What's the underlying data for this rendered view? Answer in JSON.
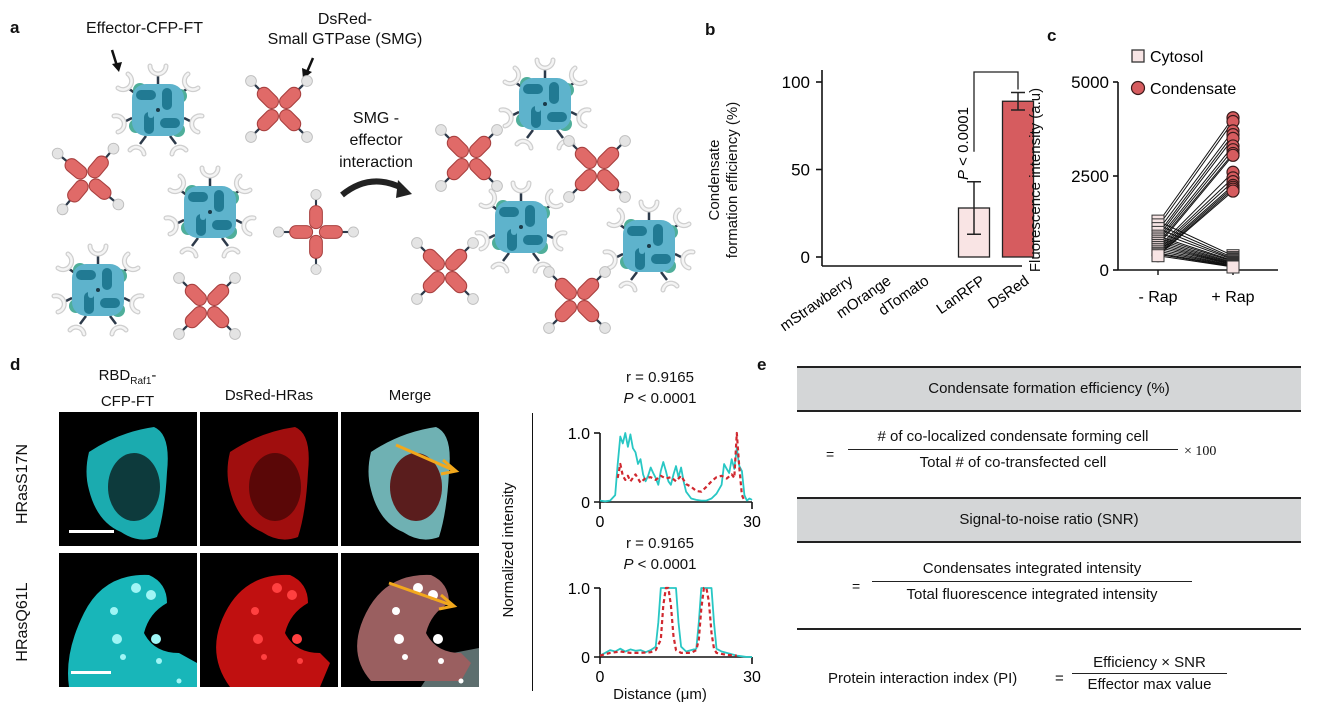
{
  "panels": {
    "a": {
      "label": "a",
      "effector_label": "Effector-CFP-FT",
      "smg_label_line1": "DsRed-",
      "smg_label_line2": "Small GTPase (SMG)",
      "interaction_line1": "SMG -",
      "interaction_line2": "effector",
      "interaction_line3": "interaction",
      "colors": {
        "effector_dark": "#217a93",
        "effector_light": "#5eb3cc",
        "effector_accent": "#4fae9a",
        "smg": "#e06a68",
        "smg_edge": "#a8403f",
        "binder": "#e4e4e4"
      }
    },
    "b": {
      "label": "b"
    },
    "c": {
      "label": "c"
    },
    "d": {
      "label": "d",
      "col_headers": {
        "c1_main": "RBD",
        "c1_sub": "Raf1",
        "c1_dash": "-",
        "c1_line2": "CFP-FT",
        "c2": "DsRed-HRas",
        "c3": "Merge"
      },
      "row_labels": [
        "HRasS17N",
        "HRasQ61L"
      ],
      "colors": {
        "cyan": "#19c6c9",
        "red": "#d81414",
        "arrow": "#f2a81d"
      }
    },
    "e": {
      "label": "e",
      "header1": "Condensate formation efficiency (%)",
      "eq1_equals": "=",
      "eq1_num": "# of co-localized condensate forming cell",
      "eq1_den": "Total # of co-transfected cell",
      "eq1_mult": "× 100",
      "header2": "Signal-to-noise ratio (SNR)",
      "eq2_equals": "=",
      "eq2_num": "Condensates integrated intensity",
      "eq2_den": "Total fluorescence integrated intensity",
      "eq3_lhs": "Protein interaction index (PI)",
      "eq3_equals": "=",
      "eq3_num": "Efficiency × SNR",
      "eq3_den": "Effector max value"
    }
  },
  "chart_data": [
    {
      "id": "b",
      "type": "bar",
      "title": "",
      "xlabel": "",
      "ylabel_line1": "Condensate",
      "ylabel_line2": "formation efficiency (%)",
      "categories": [
        "mStrawberry",
        "mOrange",
        "dTomato",
        "LanRFP",
        "DsRed"
      ],
      "values": [
        0,
        0,
        0,
        28,
        89
      ],
      "errors": [
        0,
        0,
        0,
        15,
        5
      ],
      "bar_colors": [
        "#f9e4e4",
        "#f9e4e4",
        "#f9e4e4",
        "#f9e4e4",
        "#d65c5f"
      ],
      "ylim": [
        0,
        100
      ],
      "yticks": [
        0,
        50,
        100
      ],
      "annotation": {
        "text_italic": "P",
        "text_rest": " < 0.0001",
        "between": [
          "LanRFP",
          "DsRed"
        ]
      },
      "grid": false
    },
    {
      "id": "c",
      "type": "scatter",
      "ylabel": "Fluorescence intensity (a.u)",
      "categories": [
        "- Rap",
        "+ Rap"
      ],
      "ylim": [
        0,
        5000
      ],
      "yticks": [
        0,
        2500,
        5000
      ],
      "legend": [
        {
          "name": "Cytosol",
          "marker": "square",
          "color": "#f7e4e4"
        },
        {
          "name": "Condensate",
          "marker": "circle",
          "color": "#d65c5f"
        }
      ],
      "legend_position": "top-right",
      "paired_series": {
        "condensate": {
          "minus_rap": [
            1250,
            1150,
            1050,
            950,
            880,
            820,
            760,
            700,
            650,
            600,
            560,
            520,
            480,
            440,
            400,
            380
          ],
          "plus_rap": [
            4050,
            3950,
            3700,
            3600,
            3500,
            3300,
            3200,
            3100,
            3050,
            2600,
            2450,
            2350,
            2250,
            2200,
            2150,
            2100
          ]
        },
        "cytosol": {
          "minus_rap": [
            1300,
            1200,
            1100,
            1000,
            900,
            850,
            800,
            750,
            700,
            650,
            600,
            550,
            500,
            450,
            420,
            380
          ],
          "plus_rap": [
            380,
            330,
            300,
            280,
            250,
            230,
            200,
            180,
            160,
            150,
            140,
            120,
            110,
            100,
            90,
            80
          ]
        }
      }
    },
    {
      "id": "d-line-top",
      "type": "line",
      "annotation_r": "r = 0.9165",
      "annotation_p_italic": "P",
      "annotation_p_rest": " < 0.0001",
      "xlim": [
        0,
        30
      ],
      "ylim": [
        0,
        1.0
      ],
      "xticks": [
        0,
        30
      ],
      "yticks": [
        "0",
        "1.0"
      ],
      "series": [
        {
          "name": "cyan",
          "color": "#28c7c4",
          "dash": false,
          "x": [
            0,
            1,
            2,
            3,
            3.5,
            4,
            4.5,
            5,
            5.5,
            6,
            6.5,
            7,
            7.5,
            8,
            8.5,
            9,
            9.5,
            10,
            10.5,
            11,
            11.5,
            12,
            12.5,
            13,
            13.5,
            14,
            14.5,
            15,
            15.5,
            16,
            16.5,
            17,
            18,
            19,
            20,
            21,
            22,
            23,
            24,
            24.5,
            25,
            25.5,
            26,
            26.5,
            27,
            27.5,
            28,
            28.5,
            29,
            29.5,
            30
          ],
          "y": [
            0.02,
            0.01,
            0.02,
            0.1,
            0.55,
            0.95,
            0.85,
            1.0,
            0.8,
            0.98,
            0.78,
            0.72,
            0.55,
            0.62,
            0.4,
            0.3,
            0.38,
            0.5,
            0.42,
            0.35,
            0.25,
            0.45,
            0.58,
            0.45,
            0.3,
            0.25,
            0.4,
            0.52,
            0.36,
            0.5,
            0.3,
            0.15,
            0.05,
            0.03,
            0.02,
            0.02,
            0.05,
            0.12,
            0.25,
            0.55,
            0.48,
            0.42,
            0.62,
            0.48,
            0.78,
            0.52,
            0.45,
            0.1,
            0.02,
            0.05,
            0.03
          ]
        },
        {
          "name": "red",
          "color": "#d0282f",
          "dash": true,
          "x": [
            3.5,
            4,
            4.5,
            5,
            5.5,
            6,
            7,
            8,
            9,
            10,
            11,
            12,
            13,
            14,
            15,
            16,
            17,
            18,
            19,
            20,
            21,
            22,
            23,
            24,
            25,
            26,
            26.5,
            27,
            27.5,
            28,
            28.5
          ],
          "y": [
            0.35,
            0.55,
            0.38,
            0.32,
            0.38,
            0.3,
            0.4,
            0.28,
            0.35,
            0.36,
            0.32,
            0.38,
            0.34,
            0.36,
            0.3,
            0.38,
            0.26,
            0.22,
            0.16,
            0.15,
            0.22,
            0.3,
            0.36,
            0.38,
            0.34,
            0.4,
            0.35,
            1.0,
            0.5,
            0.1,
            0.02
          ]
        }
      ]
    },
    {
      "id": "d-line-bottom",
      "type": "line",
      "annotation_r": "r = 0.9165",
      "annotation_p_italic": "P",
      "annotation_p_rest": " < 0.0001",
      "xlabel": "Distance (μm)",
      "ylabel": "Normalized intensity",
      "xlim": [
        0,
        30
      ],
      "ylim": [
        0,
        1.0
      ],
      "xticks": [
        0,
        30
      ],
      "yticks": [
        "0",
        "1.0"
      ],
      "series": [
        {
          "name": "cyan",
          "color": "#28c7c4",
          "dash": false,
          "x": [
            0,
            1,
            2,
            3,
            4,
            5,
            6,
            7,
            8,
            9,
            10,
            11,
            11.5,
            12,
            12.5,
            13,
            14,
            15,
            15.5,
            16,
            17,
            18,
            19,
            19.5,
            20,
            21,
            22,
            22.5,
            23,
            24,
            25,
            26,
            27,
            28,
            29,
            30
          ],
          "y": [
            0.02,
            0.06,
            0.1,
            0.08,
            0.12,
            0.08,
            0.11,
            0.09,
            0.1,
            0.07,
            0.1,
            0.15,
            0.5,
            1.0,
            1.0,
            1.0,
            1.0,
            1.0,
            0.5,
            0.15,
            0.08,
            0.1,
            0.12,
            0.5,
            1.0,
            1.0,
            1.0,
            0.5,
            0.12,
            0.08,
            0.06,
            0.04,
            0.02,
            0.01,
            0.0,
            0.0
          ]
        },
        {
          "name": "red",
          "color": "#d0282f",
          "dash": true,
          "x": [
            0,
            2,
            4,
            6,
            8,
            10,
            11,
            12,
            12.5,
            13,
            13.5,
            14,
            14.5,
            15,
            16,
            18,
            19,
            19.5,
            20,
            20.5,
            21,
            21.5,
            22,
            22.5,
            23,
            25,
            27
          ],
          "y": [
            0.02,
            0.06,
            0.08,
            0.06,
            0.06,
            0.07,
            0.1,
            0.25,
            0.75,
            1.0,
            1.0,
            0.75,
            0.3,
            0.1,
            0.06,
            0.06,
            0.1,
            0.25,
            0.7,
            1.0,
            1.0,
            0.8,
            0.35,
            0.12,
            0.06,
            0.03,
            0.02
          ]
        }
      ]
    }
  ]
}
